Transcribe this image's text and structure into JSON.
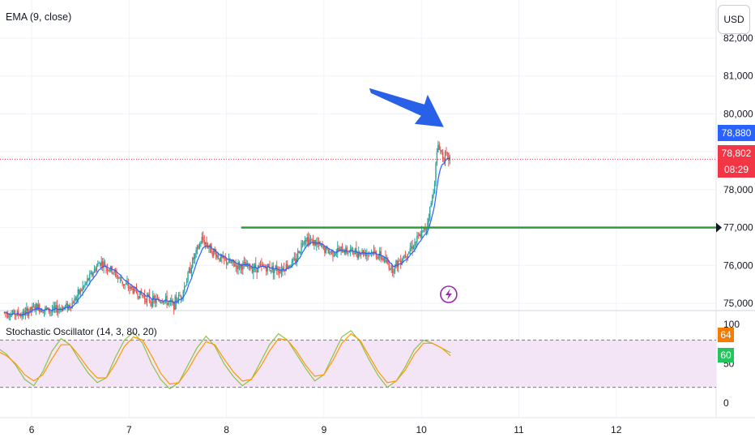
{
  "header": {
    "indicator_label": "EMA (9, close)",
    "currency_button": "USD"
  },
  "oscillator": {
    "label": "Stochastic Oscillator (14, 3, 80, 20)",
    "k_value": "64",
    "d_value": "60"
  },
  "price_tags": {
    "ema": "78,880",
    "last": "78,802",
    "countdown": "08:29"
  },
  "colors": {
    "up": "#26a69a",
    "down": "#ef5350",
    "ema": "#2962ff",
    "support": "#2e9e3a",
    "arrow": "#2860e8",
    "osc_k": "#8bc34a",
    "osc_d": "#ff9800",
    "band_fill": "#f3e5f5",
    "lightning": "#9c27b0",
    "ema_tag": "#2962ff",
    "last_tag": "#f23645"
  },
  "icons": {
    "alert": "lightning-icon",
    "arrow": "arrow-annotation"
  },
  "chart_data": [
    {
      "type": "candlestick",
      "title": "",
      "x_ticks": [
        "6",
        "7",
        "8",
        "9",
        "10",
        "11",
        "12"
      ],
      "y_ticks": [
        "75,000",
        "76,000",
        "77,000",
        "78,000",
        "79,000",
        "80,000",
        "81,000",
        "82,000"
      ],
      "ylim": [
        74700,
        82900
      ],
      "xlim": [
        5.65,
        13.0
      ],
      "grid": true,
      "support_level": 77000,
      "last_price": 78802,
      "ema_value": 78880,
      "trend_points": [
        [
          5.72,
          74750
        ],
        [
          5.9,
          74700
        ],
        [
          6.05,
          74900
        ],
        [
          6.2,
          74800
        ],
        [
          6.4,
          74950
        ],
        [
          6.55,
          75500
        ],
        [
          6.7,
          76100
        ],
        [
          6.85,
          75800
        ],
        [
          6.95,
          75500
        ],
        [
          7.1,
          75250
        ],
        [
          7.25,
          75050
        ],
        [
          7.35,
          75100
        ],
        [
          7.45,
          74950
        ],
        [
          7.55,
          75300
        ],
        [
          7.65,
          76100
        ],
        [
          7.75,
          76700
        ],
        [
          7.85,
          76400
        ],
        [
          7.95,
          76150
        ],
        [
          8.1,
          76000
        ],
        [
          8.25,
          75950
        ],
        [
          8.4,
          75950
        ],
        [
          8.55,
          75900
        ],
        [
          8.7,
          76100
        ],
        [
          8.8,
          76750
        ],
        [
          8.9,
          76600
        ],
        [
          9.05,
          76350
        ],
        [
          9.2,
          76400
        ],
        [
          9.35,
          76350
        ],
        [
          9.5,
          76350
        ],
        [
          9.6,
          76200
        ],
        [
          9.7,
          75900
        ],
        [
          9.8,
          76200
        ],
        [
          9.95,
          76650
        ],
        [
          10.05,
          77000
        ],
        [
          10.12,
          77900
        ],
        [
          10.17,
          79200
        ],
        [
          10.22,
          78900
        ],
        [
          10.27,
          78850
        ],
        [
          10.3,
          78800
        ]
      ],
      "arrow_annotation": {
        "tip": [
          10.23,
          79650
        ]
      }
    },
    {
      "type": "line",
      "title": "Stochastic Oscillator (14, 3, 80, 20)",
      "ylim": [
        0,
        100
      ],
      "y_ticks": [
        "0",
        "50",
        "100"
      ],
      "bands": [
        20,
        80
      ],
      "series": [
        {
          "name": "%K",
          "values": [
            70,
            62,
            48,
            30,
            22,
            40,
            66,
            82,
            74,
            55,
            38,
            26,
            32,
            58,
            80,
            90,
            76,
            50,
            30,
            18,
            26,
            48,
            70,
            85,
            72,
            50,
            34,
            22,
            30,
            52,
            74,
            88,
            80,
            62,
            44,
            28,
            36,
            60,
            84,
            92,
            78,
            55,
            35,
            20,
            28,
            46,
            68,
            80,
            76,
            70,
            64
          ]
        },
        {
          "name": "%D",
          "values": [
            66,
            60,
            50,
            36,
            28,
            36,
            56,
            74,
            74,
            60,
            44,
            32,
            32,
            50,
            72,
            84,
            80,
            60,
            38,
            24,
            26,
            42,
            62,
            78,
            74,
            56,
            40,
            28,
            30,
            46,
            66,
            82,
            80,
            66,
            48,
            34,
            36,
            54,
            76,
            88,
            80,
            60,
            40,
            26,
            28,
            42,
            62,
            76,
            76,
            70,
            60
          ]
        }
      ]
    }
  ]
}
